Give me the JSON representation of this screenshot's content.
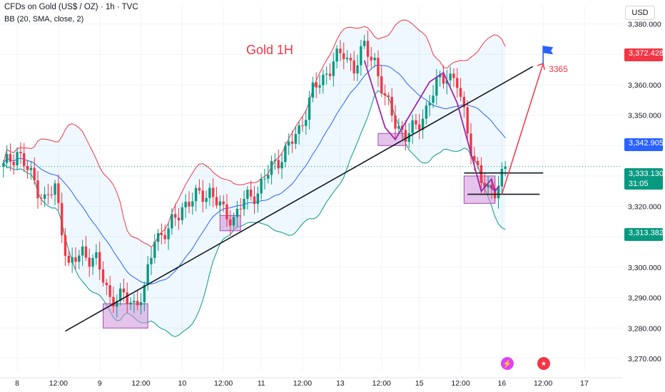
{
  "header": {
    "symbol_line": "CFDs on Gold (US$ / OZ) · 1h · TVC",
    "indicator_line": "BB (20, SMA, close, 2)"
  },
  "currency_label": "USD",
  "price_tags": {
    "upper": "3,372.428",
    "middle": "3,342.905",
    "current": "3,333.130",
    "countdown": "31:05",
    "lower": "3,313.382"
  },
  "colors": {
    "up": "#089981",
    "down": "#f23645",
    "upper_band": "#f23645",
    "basis": "#2962ff",
    "lower_band": "#089981",
    "band_fill": "#2196f3",
    "boxes": "#ce93d8",
    "path": "#9c27b0",
    "target_arrow": "#f23645",
    "flag": "#2962ff",
    "current_price": "#089981"
  },
  "icons": {
    "flag": "flag-icon",
    "event": "lightning-icon",
    "us_event": "us-flag-icon"
  },
  "chart_data": {
    "type": "candlestick",
    "title": "Gold 1H",
    "target_label": "3365",
    "y_ticks": [
      3270,
      3280,
      3290,
      3300,
      3310,
      3320,
      3330,
      3340,
      3350,
      3360,
      3370,
      3380
    ],
    "y_tick_labels": [
      "3,270.000",
      "3,280.000",
      "3,290.000",
      "3,300.000",
      "3,310.000",
      "3,320.000",
      "3,330.000",
      "3,340.000",
      "3,350.000",
      "3,360.000",
      "3,370.000",
      "3,380.000"
    ],
    "ylim": [
      3266,
      3386
    ],
    "x_ticks": [
      {
        "label": "8",
        "bar": 4
      },
      {
        "label": "12:00",
        "bar": 16
      },
      {
        "label": "9",
        "bar": 28
      },
      {
        "label": "12:00",
        "bar": 40
      },
      {
        "label": "10",
        "bar": 52
      },
      {
        "label": "12:00",
        "bar": 64
      },
      {
        "label": "11",
        "bar": 75
      },
      {
        "label": "12:00",
        "bar": 87
      },
      {
        "label": "13",
        "bar": 98
      },
      {
        "label": "12:00",
        "bar": 110
      },
      {
        "label": "15",
        "bar": 121
      },
      {
        "label": "12:00",
        "bar": 133
      },
      {
        "label": "16",
        "bar": 145
      },
      {
        "label": "12:00",
        "bar": 157
      },
      {
        "label": "17",
        "bar": 169
      }
    ],
    "bar_range": [
      -1,
      180
    ],
    "close_keypoints": [
      [
        0,
        3333
      ],
      [
        4,
        3338
      ],
      [
        8,
        3330
      ],
      [
        12,
        3322
      ],
      [
        15,
        3326
      ],
      [
        19,
        3300
      ],
      [
        23,
        3305
      ],
      [
        27,
        3302
      ],
      [
        31,
        3290
      ],
      [
        35,
        3290
      ],
      [
        38,
        3288
      ],
      [
        41,
        3292
      ],
      [
        44,
        3310
      ],
      [
        48,
        3312
      ],
      [
        52,
        3320
      ],
      [
        56,
        3323
      ],
      [
        60,
        3325
      ],
      [
        64,
        3318
      ],
      [
        67,
        3316
      ],
      [
        70,
        3322
      ],
      [
        74,
        3325
      ],
      [
        78,
        3333
      ],
      [
        82,
        3338
      ],
      [
        86,
        3345
      ],
      [
        90,
        3358
      ],
      [
        93,
        3362
      ],
      [
        96,
        3368
      ],
      [
        99,
        3370
      ],
      [
        102,
        3366
      ],
      [
        105,
        3372
      ],
      [
        108,
        3368
      ],
      [
        111,
        3355
      ],
      [
        114,
        3348
      ],
      [
        117,
        3343
      ],
      [
        120,
        3346
      ],
      [
        123,
        3352
      ],
      [
        126,
        3360
      ],
      [
        129,
        3364
      ],
      [
        132,
        3360
      ],
      [
        135,
        3345
      ],
      [
        137,
        3335
      ],
      [
        139,
        3328
      ],
      [
        141,
        3325
      ],
      [
        143,
        3326
      ],
      [
        145,
        3330
      ],
      [
        146,
        3333
      ]
    ],
    "last_close": 3333.13,
    "bollinger": {
      "period": 20,
      "type": "SMA",
      "source": "close",
      "stddev": 2,
      "upper": 3372.428,
      "basis": 3342.905,
      "lower": 3313.382
    },
    "trendline": {
      "from": {
        "bar": 18,
        "price": 3279
      },
      "to": {
        "bar": 154,
        "price": 3366
      }
    },
    "horizontal_lines": [
      {
        "from_bar": 134,
        "to_bar": 157,
        "price": 3331
      },
      {
        "from_bar": 135,
        "to_bar": 156,
        "price": 3324
      }
    ],
    "boxes": [
      {
        "from_bar": 29,
        "to_bar": 42,
        "top": 3288,
        "bottom": 3280
      },
      {
        "from_bar": 63,
        "to_bar": 69,
        "top": 3317,
        "bottom": 3312
      },
      {
        "from_bar": 109,
        "to_bar": 117,
        "top": 3344,
        "bottom": 3340
      },
      {
        "from_bar": 134,
        "to_bar": 143,
        "top": 3330,
        "bottom": 3321
      }
    ],
    "path": [
      {
        "bar": 105,
        "price": 3368
      },
      {
        "bar": 111,
        "price": 3346
      },
      {
        "bar": 114,
        "price": 3342
      },
      {
        "bar": 124,
        "price": 3361
      },
      {
        "bar": 128,
        "price": 3364
      },
      {
        "bar": 132,
        "price": 3354
      },
      {
        "bar": 139,
        "price": 3325
      },
      {
        "bar": 142,
        "price": 3329
      },
      {
        "bar": 143,
        "price": 3325
      }
    ],
    "target_arrow": {
      "from": {
        "bar": 145,
        "price": 3324
      },
      "to": {
        "bar": 157,
        "price": 3367
      }
    },
    "target_flag": {
      "bar": 157,
      "price": 3370
    }
  }
}
